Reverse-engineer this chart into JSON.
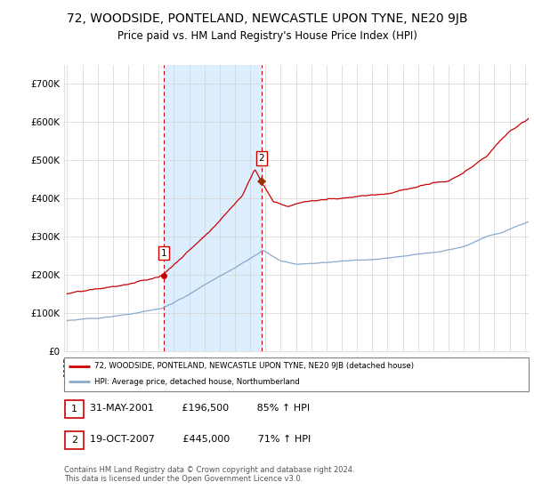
{
  "title": "72, WOODSIDE, PONTELAND, NEWCASTLE UPON TYNE, NE20 9JB",
  "subtitle": "Price paid vs. HM Land Registry's House Price Index (HPI)",
  "title_fontsize": 10,
  "subtitle_fontsize": 8.5,
  "sale1_price": 196500,
  "sale1_label": "1",
  "sale1_hpi_pct": "85% ↑ HPI",
  "sale2_price": 445000,
  "sale2_label": "2",
  "sale2_hpi_pct": "71% ↑ HPI",
  "legend_line1": "72, WOODSIDE, PONTELAND, NEWCASTLE UPON TYNE, NE20 9JB (detached house)",
  "legend_line2": "HPI: Average price, detached house, Northumberland",
  "footer": "Contains HM Land Registry data © Crown copyright and database right 2024.\nThis data is licensed under the Open Government Licence v3.0.",
  "red_color": "#cc0000",
  "blue_color": "#88aacc",
  "shading_color": "#ddeeff",
  "vline_color": "#cc0000",
  "ylim": [
    0,
    750000
  ],
  "yticks": [
    0,
    100000,
    200000,
    300000,
    400000,
    500000,
    600000,
    700000
  ],
  "ytick_labels": [
    "£0",
    "£100K",
    "£200K",
    "£300K",
    "£400K",
    "£500K",
    "£600K",
    "£700K"
  ]
}
